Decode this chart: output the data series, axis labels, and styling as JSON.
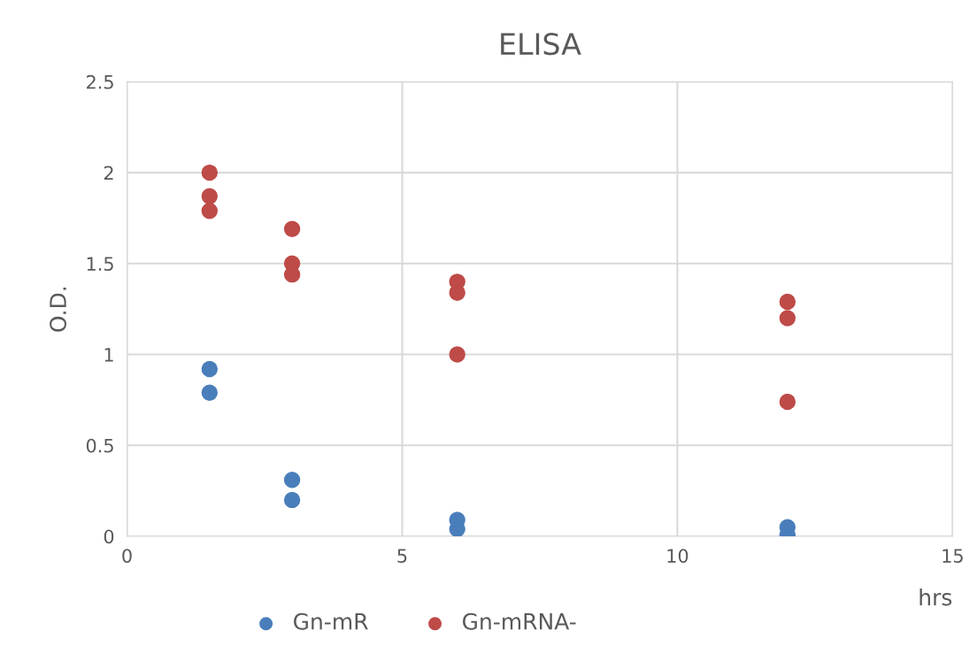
{
  "chart_data": {
    "type": "scatter",
    "title": "ELISA",
    "xlabel": "hrs",
    "ylabel": "O.D.",
    "x": [
      1.5,
      1.5,
      1.5,
      3,
      3,
      3,
      6,
      6,
      6,
      12,
      12,
      12
    ],
    "series": [
      {
        "name": "Gn-mR",
        "color": "#4a7ebb",
        "values": [
          0.92,
          null,
          0.79,
          0.31,
          0.2,
          null,
          0.09,
          null,
          0.04,
          0.05,
          null,
          0.01
        ]
      },
      {
        "name": "Gn-mRNA-",
        "color": "#be4b48",
        "values": [
          2.0,
          1.87,
          1.79,
          1.69,
          1.5,
          1.44,
          1.4,
          1.34,
          1.0,
          1.29,
          1.2,
          0.74
        ]
      }
    ],
    "xlim": [
      0,
      15
    ],
    "xticks": [
      0,
      5,
      10,
      15
    ],
    "ylim": [
      0,
      2.5
    ],
    "yticks": [
      0,
      0.5,
      1,
      1.5,
      2,
      2.5
    ],
    "grid": true,
    "legend": "bottom",
    "marker": "circle"
  }
}
